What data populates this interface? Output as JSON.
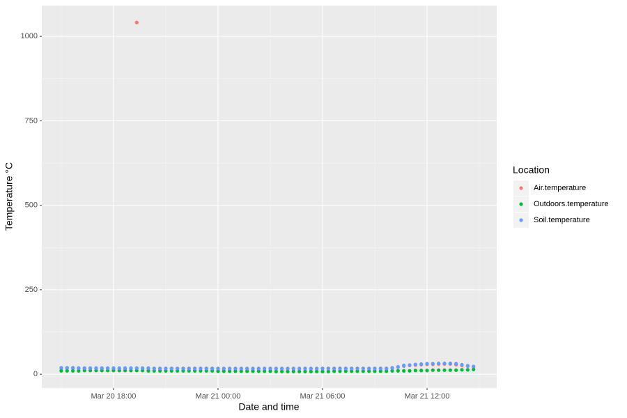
{
  "chart_data": {
    "type": "scatter",
    "x_label": "Date and time",
    "y_label": "Temperature °C",
    "legend_title": "Location",
    "legend": "right",
    "grid": true,
    "x": [
      "Mar 20 15:00",
      "Mar 20 15:20",
      "Mar 20 15:40",
      "Mar 20 16:00",
      "Mar 20 16:20",
      "Mar 20 16:40",
      "Mar 20 17:00",
      "Mar 20 17:20",
      "Mar 20 17:40",
      "Mar 20 18:00",
      "Mar 20 18:20",
      "Mar 20 18:40",
      "Mar 20 19:00",
      "Mar 20 19:20",
      "Mar 20 19:40",
      "Mar 20 20:00",
      "Mar 20 20:20",
      "Mar 20 20:40",
      "Mar 20 21:00",
      "Mar 20 21:20",
      "Mar 20 21:40",
      "Mar 20 22:00",
      "Mar 20 22:20",
      "Mar 20 22:40",
      "Mar 20 23:00",
      "Mar 20 23:20",
      "Mar 20 23:40",
      "Mar 21 00:00",
      "Mar 21 00:20",
      "Mar 21 00:40",
      "Mar 21 01:00",
      "Mar 21 01:20",
      "Mar 21 01:40",
      "Mar 21 02:00",
      "Mar 21 02:20",
      "Mar 21 02:40",
      "Mar 21 03:00",
      "Mar 21 03:20",
      "Mar 21 03:40",
      "Mar 21 04:00",
      "Mar 21 04:20",
      "Mar 21 04:40",
      "Mar 21 05:00",
      "Mar 21 05:20",
      "Mar 21 05:40",
      "Mar 21 06:00",
      "Mar 21 06:20",
      "Mar 21 06:40",
      "Mar 21 07:00",
      "Mar 21 07:20",
      "Mar 21 07:40",
      "Mar 21 08:00",
      "Mar 21 08:20",
      "Mar 21 08:40",
      "Mar 21 09:00",
      "Mar 21 09:20",
      "Mar 21 09:40",
      "Mar 21 10:00",
      "Mar 21 10:20",
      "Mar 21 10:40",
      "Mar 21 11:00",
      "Mar 21 11:20",
      "Mar 21 11:40",
      "Mar 21 12:00",
      "Mar 21 12:20",
      "Mar 21 12:40",
      "Mar 21 13:00",
      "Mar 21 13:20",
      "Mar 21 13:40",
      "Mar 21 14:00",
      "Mar 21 14:20",
      "Mar 21 14:40"
    ],
    "xlim": [
      "Mar 20 13:53",
      "Mar 21 16:00"
    ],
    "xticks": [
      "Mar 20 18:00",
      "Mar 21 00:00",
      "Mar 21 06:00",
      "Mar 21 12:00"
    ],
    "ylim": [
      -41,
      1091
    ],
    "yticks": [
      0,
      250,
      500,
      750,
      1000
    ],
    "series": [
      {
        "name": "Air.temperature",
        "color": "#F8766D",
        "values": [
          18,
          18,
          18,
          18,
          17,
          17,
          17,
          17,
          17,
          17,
          17,
          17,
          17,
          1041,
          17,
          17,
          17,
          17,
          17,
          17,
          17,
          17,
          17,
          17,
          17,
          17,
          17,
          16,
          16,
          16,
          16,
          16,
          16,
          16,
          16,
          16,
          16,
          16,
          16,
          16,
          16,
          16,
          16,
          16,
          16,
          17,
          17,
          17,
          17,
          17,
          17,
          17,
          17,
          17,
          17,
          17,
          17,
          19,
          21,
          24,
          26,
          27,
          28,
          29,
          29,
          30,
          30,
          30,
          28,
          26,
          24,
          22
        ]
      },
      {
        "name": "Outdoors.temperature",
        "color": "#00BA38",
        "values": [
          10,
          10,
          10,
          10,
          11,
          11,
          11,
          11,
          11,
          11,
          11,
          11,
          11,
          11,
          11,
          10,
          10,
          10,
          10,
          10,
          10,
          10,
          10,
          10,
          10,
          10,
          10,
          9,
          9,
          9,
          9,
          9,
          9,
          9,
          9,
          9,
          9,
          8,
          8,
          8,
          8,
          8,
          8,
          8,
          8,
          8,
          8,
          9,
          9,
          9,
          9,
          9,
          9,
          9,
          9,
          9,
          9,
          10,
          10,
          10,
          10,
          11,
          11,
          11,
          12,
          12,
          12,
          12,
          12,
          13,
          13,
          14
        ]
      },
      {
        "name": "Soil.temperature",
        "color": "#619CFF",
        "values": [
          19,
          19,
          19,
          18,
          18,
          18,
          18,
          18,
          18,
          18,
          18,
          18,
          18,
          18,
          18,
          18,
          17,
          17,
          17,
          17,
          17,
          17,
          17,
          17,
          17,
          17,
          17,
          17,
          17,
          17,
          17,
          17,
          17,
          17,
          17,
          17,
          17,
          17,
          17,
          17,
          17,
          17,
          17,
          17,
          17,
          17,
          17,
          17,
          17,
          17,
          17,
          17,
          17,
          17,
          17,
          17,
          17,
          18,
          22,
          26,
          27,
          29,
          30,
          31,
          31,
          32,
          32,
          32,
          31,
          28,
          25,
          23
        ]
      }
    ]
  }
}
